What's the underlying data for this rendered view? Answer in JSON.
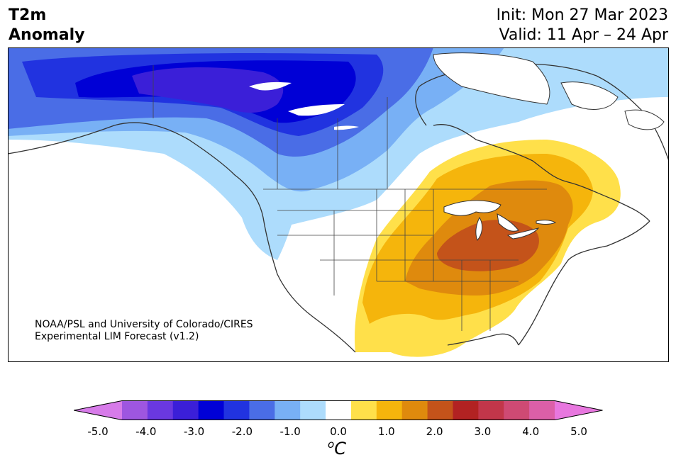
{
  "header": {
    "variable_line1": "T2m",
    "variable_line2": "Anomaly",
    "init_text": "Init: Mon 27 Mar 2023",
    "valid_text": "Valid: 11 Apr – 24 Apr"
  },
  "credit": {
    "line1": "NOAA/PSL and University of Colorado/CIRES",
    "line2": "Experimental LIM Forecast (v1.2)"
  },
  "colorbar": {
    "unit": "C",
    "unit_superscript": "o",
    "ticks": [
      "-5.0",
      "-4.0",
      "-3.0",
      "-2.0",
      "-1.0",
      "0.0",
      "1.0",
      "2.0",
      "3.0",
      "4.0",
      "5.0"
    ],
    "levels": [
      -5.0,
      -4.5,
      -4.0,
      -3.5,
      -3.0,
      -2.5,
      -2.0,
      -1.5,
      -1.0,
      -0.5,
      0.5,
      1.0,
      1.5,
      2.0,
      2.5,
      3.0,
      3.5,
      4.0,
      4.5,
      5.0
    ],
    "colors": [
      "#d77be9",
      "#9e56e0",
      "#6a38e0",
      "#3b1fd8",
      "#0000d6",
      "#2133e0",
      "#4a6de6",
      "#78b0f5",
      "#addcfc",
      "#ffffff",
      "#ffe04a",
      "#f5b50c",
      "#df8a0d",
      "#c4531a",
      "#b22222",
      "#c2364a",
      "#cf4a74",
      "#dc5fa8",
      "#e877df"
    ],
    "extend_low_color": "#d77be9",
    "extend_high_color": "#e877df"
  },
  "map": {
    "land_color": "#ffffff",
    "coast_color": "#333333",
    "regions": [
      {
        "name": "cold-anomaly",
        "level": -1.0,
        "color": "#addcfc"
      },
      {
        "name": "cold-anomaly",
        "level": -1.5,
        "color": "#78b0f5"
      },
      {
        "name": "cold-anomaly",
        "level": -2.0,
        "color": "#4a6de6"
      },
      {
        "name": "cold-anomaly",
        "level": -2.5,
        "color": "#2133e0"
      },
      {
        "name": "cold-anomaly",
        "level": -3.0,
        "color": "#0000d6"
      },
      {
        "name": "cold-anomaly",
        "level": -3.5,
        "color": "#3b1fd8"
      },
      {
        "name": "warm-anomaly",
        "level": 1.0,
        "color": "#ffe04a"
      },
      {
        "name": "warm-anomaly",
        "level": 1.5,
        "color": "#f5b50c"
      },
      {
        "name": "warm-anomaly",
        "level": 2.0,
        "color": "#df8a0d"
      },
      {
        "name": "warm-anomaly",
        "level": 2.5,
        "color": "#c4531a"
      }
    ]
  }
}
